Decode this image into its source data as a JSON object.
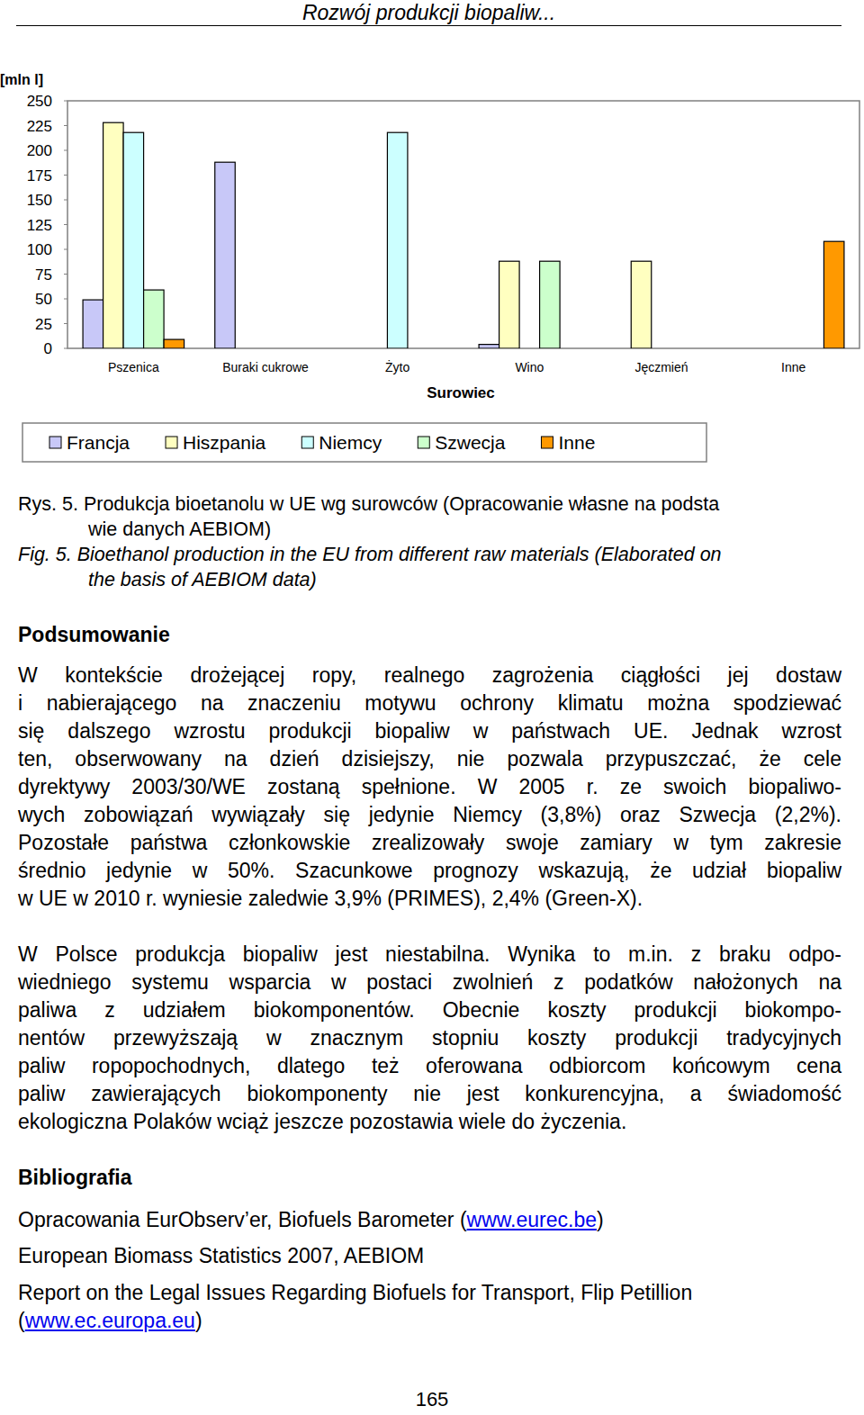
{
  "header": "Rozwój produkcji biopaliw...",
  "chart_data": {
    "type": "bar",
    "categories": [
      "Pszenica",
      "Buraki cukrowe",
      "Żyto",
      "Wino",
      "Jęczmień",
      "Inne"
    ],
    "series": [
      {
        "name": "Francja",
        "color": "#c8c8f8",
        "values": [
          49,
          188,
          0,
          4,
          0,
          0
        ]
      },
      {
        "name": "Hiszpania",
        "color": "#ffffc0",
        "values": [
          228,
          0,
          0,
          88,
          88,
          0
        ]
      },
      {
        "name": "Niemcy",
        "color": "#ccffff",
        "values": [
          218,
          0,
          218,
          0,
          0,
          0
        ]
      },
      {
        "name": "Szwecja",
        "color": "#ccffcc",
        "values": [
          59,
          0,
          0,
          88,
          0,
          0
        ]
      },
      {
        "name": "Inne",
        "color": "#ff9900",
        "values": [
          9,
          0,
          0,
          0,
          0,
          108
        ]
      }
    ],
    "y_label": "[mln l]",
    "x_label": "Surowiec",
    "ylim": [
      0,
      250
    ],
    "yticks": [
      0,
      25,
      50,
      75,
      100,
      125,
      150,
      175,
      200,
      225,
      250
    ],
    "grid": false,
    "legend": "bottom"
  },
  "caption_pl": [
    "Rys. 5. Produkcja bioetanolu w UE wg surowców (Opracowanie własne na podsta",
    "wie danych AEBIOM)"
  ],
  "caption_en": [
    "Fig. 5. Bioethanol production in the EU from different raw materials (Elaborated on",
    "the basis of AEBIOM data)"
  ],
  "summary": {
    "heading": "Podsumowanie",
    "paragraphs": [
      [
        "W kontekście drożejącej ropy, realnego zagrożenia ciągłości jej dostaw",
        "i nabierającego na znaczeniu motywu ochrony klimatu można spodziewać",
        "się dalszego wzrostu produkcji biopaliw w państwach UE. Jednak wzrost",
        "ten, obserwowany na dzień dzisiejszy, nie pozwala przypuszczać, że cele",
        "dyrektywy 2003/30/WE zostaną spełnione. W 2005 r. ze swoich biopaliwo-",
        "wych zobowiązań wywiązały się jedynie Niemcy (3,8%) oraz Szwecja (2,2%).",
        "Pozostałe państwa członkowskie zrealizowały swoje zamiary w tym zakresie",
        "średnio jedynie w 50%. Szacunkowe prognozy wskazują, że udział biopaliw",
        "w UE w 2010 r. wyniesie zaledwie 3,9% (PRIMES), 2,4% (Green-X)."
      ],
      [
        "W Polsce produkcja biopaliw jest niestabilna. Wynika to m.in. z braku odpo-",
        "wiedniego systemu wsparcia w postaci zwolnień z podatków nałożonych na",
        "paliwa z udziałem biokomponentów. Obecnie koszty produkcji biokompo-",
        "nentów przewyższają w znacznym stopniu koszty produkcji tradycyjnych",
        "paliw ropopochodnych, dlatego też oferowana odbiorcom końcowym cena",
        "paliw zawierających biokomponenty nie jest konkurencyjna, a świadomość",
        "ekologiczna Polaków wciąż jeszcze pozostawia wiele do życzenia."
      ]
    ]
  },
  "bibliography": {
    "heading": "Bibliografia",
    "items": [
      {
        "text": "Opracowania EurObserv’er, Biofuels Barometer (",
        "link": "www.eurec.be",
        "text_after": ")"
      },
      {
        "text": "European Biomass Statistics 2007, AEBIOM"
      },
      {
        "text": "Report on the Legal Issues Regarding Biofuels for Transport, Flip Petillion (",
        "link": "www.ec.europa.eu",
        "text_after": ")"
      }
    ]
  },
  "page_number": "165"
}
